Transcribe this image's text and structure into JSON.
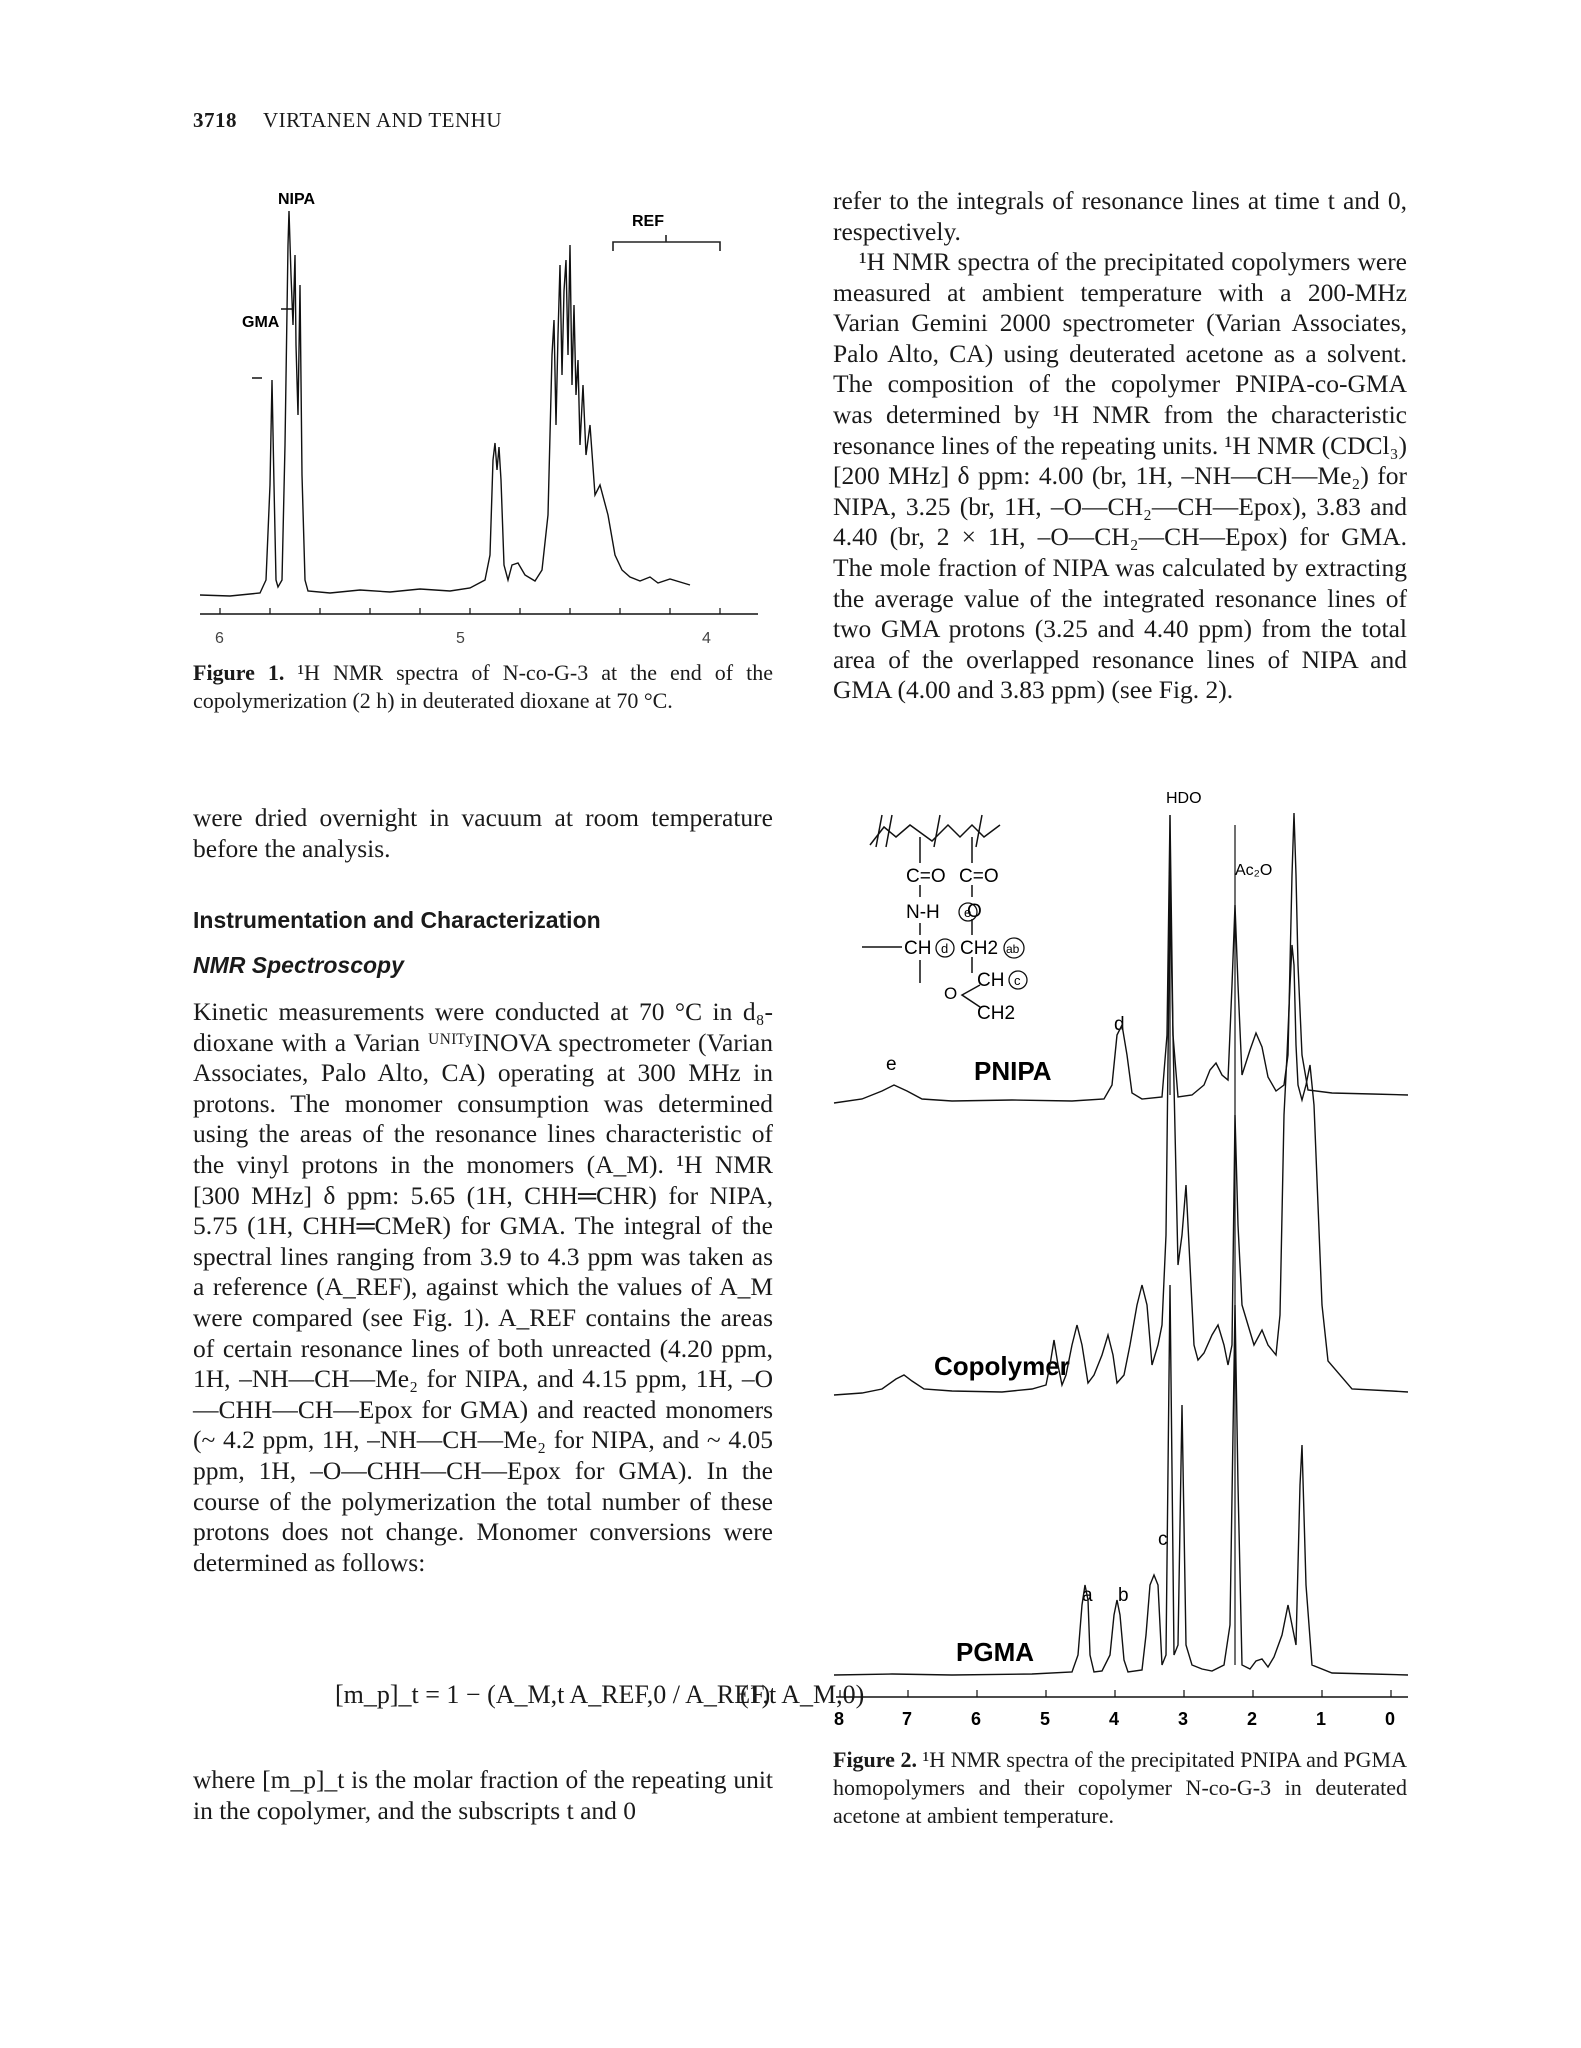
{
  "header": {
    "page_number": "3718",
    "authors": "VIRTANEN AND TENHU"
  },
  "figure1": {
    "labels": {
      "nipa": "NIPA",
      "gma": "GMA",
      "ref": "REF"
    },
    "ticks": [
      "6",
      "5",
      "4"
    ],
    "caption_label": "Figure 1.",
    "caption_text": "¹H NMR spectra of N-co-G-3 at the end of the copolymerization (2 h) in deuterated dioxane at 70 °C."
  },
  "left_column": {
    "continuation": "were dried overnight in vacuum at room temperature before the analysis.",
    "section_heading": "Instrumentation and Characterization",
    "subsection_heading": "NMR Spectroscopy",
    "paragraph1": "Kinetic measurements were conducted at 70 °C in d₈-dioxane with a Varian ᵁᴺᴵᵀʸINOVA spectrometer (Varian Associates, Palo Alto, CA) operating at 300 MHz in protons. The monomer consumption was determined using the areas of the resonance lines characteristic of the vinyl protons in the monomers (A_M). ¹H NMR [300 MHz] δ ppm: 5.65 (1H, CHH═CHR) for NIPA, 5.75 (1H, CHH═CMeR) for GMA. The integral of the spectral lines ranging from 3.9 to 4.3 ppm was taken as a reference (A_REF), against which the values of A_M were compared (see Fig. 1). A_REF contains the areas of certain resonance lines of both unreacted (4.20 ppm, 1H, –NH—CH—Me₂ for NIPA, and 4.15 ppm, 1H, –O—CHH—CH—Epox for GMA) and reacted monomers (~ 4.2 ppm, 1H, –NH—CH—Me₂ for NIPA, and ~ 4.05 ppm, 1H, –O—CHH—CH—Epox for GMA). In the course of the polymerization the total number of these protons does not change. Monomer conversions were determined as follows:",
    "equation": "[m_p]_t = 1 − (A_M,t A_REF,0 / A_REF,t A_M,0)",
    "equation_number": "(1)",
    "paragraph2": "where [m_p]_t is the molar fraction of the repeating unit in the copolymer, and the subscripts t and 0"
  },
  "right_column": {
    "paragraph1": "refer to the integrals of resonance lines at time t and 0, respectively.",
    "paragraph2": "¹H NMR spectra of the precipitated copolymers were measured at ambient temperature with a 200-MHz Varian Gemini 2000 spectrometer (Varian Associates, Palo Alto, CA) using deuterated acetone as a solvent. The composition of the copolymer PNIPA-co-GMA was determined by ¹H NMR from the characteristic resonance lines of the repeating units. ¹H NMR (CDCl₃) [200 MHz] δ ppm: 4.00 (br, 1H, –NH—CH—Me₂) for NIPA, 3.25 (br, 1H, –O—CH₂—CH—Epox), 3.83 and 4.40 (br, 2 × 1H, –O—CH₂—CH—Epox) for GMA. The mole fraction of NIPA was calculated by extracting the average value of the integrated resonance lines of two GMA protons (3.25 and 4.40 ppm) from the total area of the overlapped resonance lines of NIPA and GMA (4.00 and 3.83 ppm) (see Fig. 2)."
  },
  "figure2": {
    "labels": {
      "hdo": "HDO",
      "ac2o": "Ac₂O",
      "pnipa": "PNIPA",
      "copolymer": "Copolymer",
      "pgma": "PGMA",
      "a": "a",
      "b": "b",
      "c": "c",
      "d": "d",
      "e": "e"
    },
    "structure": {
      "co1": "C=O",
      "co2": "C=O",
      "nh": "N-H",
      "o1": "O",
      "ch1": "CH",
      "ch2ab": "CH2",
      "chc": "CH",
      "ch2b": "CH2",
      "o2": "O",
      "circ_e": "e",
      "circ_d": "d",
      "circ_ab": "ab",
      "circ_c": "c"
    },
    "ticks": [
      "8",
      "7",
      "6",
      "5",
      "4",
      "3",
      "2",
      "1",
      "0"
    ],
    "caption_label": "Figure 2.",
    "caption_text": "¹H NMR spectra of the precipitated PNIPA and PGMA homopolymers and their copolymer N-co-G-3 in deuterated acetone at ambient temperature."
  }
}
